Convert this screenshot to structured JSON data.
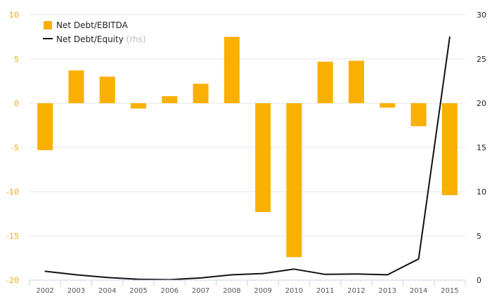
{
  "chart_data": {
    "type": "bar+line",
    "categories": [
      "2002",
      "2003",
      "2004",
      "2005",
      "2006",
      "2007",
      "2008",
      "2009",
      "2010",
      "2011",
      "2012",
      "2013",
      "2014",
      "2015"
    ],
    "series": [
      {
        "name": "Net Debt/EBITDA",
        "type": "bar",
        "axis": "left",
        "color": "#f9b000",
        "values": [
          -5.3,
          3.7,
          3.0,
          -0.6,
          0.8,
          2.2,
          7.5,
          -12.3,
          -17.4,
          4.7,
          4.8,
          -0.5,
          -2.6,
          -10.4
        ]
      },
      {
        "name": "Net Debt/Equity",
        "name_suffix": "(rhs)",
        "type": "line",
        "axis": "right",
        "color": "#111111",
        "values": [
          1.0,
          0.6,
          0.3,
          0.1,
          0.05,
          0.25,
          0.6,
          0.75,
          1.25,
          0.65,
          0.7,
          0.6,
          2.4,
          27.5
        ]
      }
    ],
    "y_left": {
      "min": -20,
      "max": 10,
      "ticks": [
        10,
        5,
        0,
        -5,
        -10,
        -15,
        -20
      ],
      "color": "#f5a800"
    },
    "y_right": {
      "min": 0,
      "max": 30,
      "ticks": [
        30,
        25,
        20,
        15,
        10,
        5,
        0
      ]
    },
    "legend_position": "top-left",
    "grid": true
  }
}
